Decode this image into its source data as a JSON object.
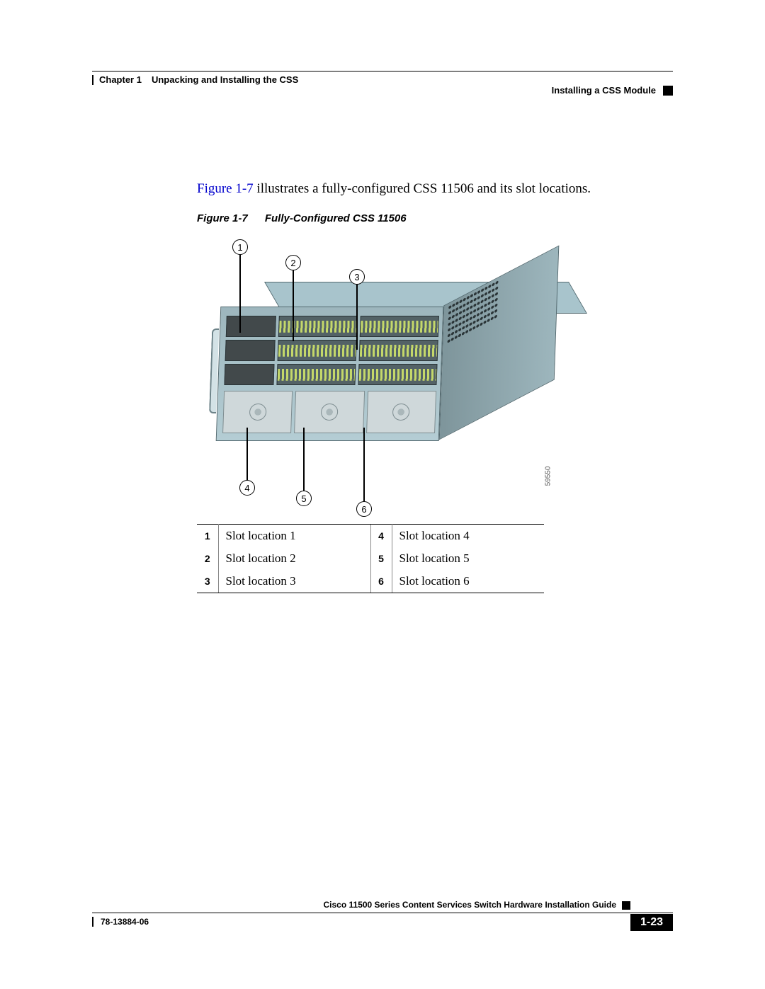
{
  "header": {
    "chapter": "Chapter 1",
    "chapter_title": "Unpacking and Installing the CSS",
    "section": "Installing a CSS Module"
  },
  "intro": {
    "figref": "Figure 1-7",
    "rest": " illustrates a fully-configured CSS 11506 and its slot locations."
  },
  "figure": {
    "number": "Figure 1-7",
    "title": "Fully-Configured CSS 11506",
    "image_id": "59550",
    "callouts": {
      "c1": "1",
      "c2": "2",
      "c3": "3",
      "c4": "4",
      "c5": "5",
      "c6": "6"
    }
  },
  "legend": [
    {
      "n1": "1",
      "t1": "Slot location 1",
      "n2": "4",
      "t2": "Slot location 4"
    },
    {
      "n1": "2",
      "t1": "Slot location 2",
      "n2": "5",
      "t2": "Slot location 5"
    },
    {
      "n1": "3",
      "t1": "Slot location 3",
      "n2": "6",
      "t2": "Slot location 6"
    }
  ],
  "footer": {
    "guide_title": "Cisco 11500 Series Content Services Switch Hardware Installation Guide",
    "doc_number": "78-13884-06",
    "page_number": "1-23"
  },
  "colors": {
    "link": "#0000cc",
    "chassis_light": "#b4cdd4",
    "chassis_mid": "#9db6bd",
    "chassis_dark": "#7e959b",
    "accent_green": "#c4d86a",
    "rule": "#000000"
  }
}
